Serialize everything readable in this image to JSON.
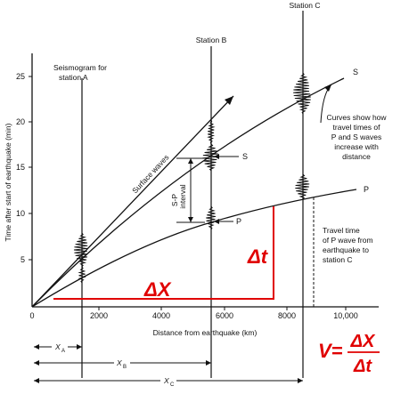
{
  "stations": {
    "a": "Seismogram for",
    "a2": "station A",
    "b": "Station B",
    "c": "Station C"
  },
  "y_axis": {
    "label": "Time after start of earthquake (min)",
    "ticks": [
      "5",
      "10",
      "15",
      "20",
      "25"
    ]
  },
  "x_axis": {
    "label": "Distance from earthquake (km)",
    "origin": "0",
    "ticks": [
      "2000",
      "4000",
      "6000",
      "8000",
      "10,000"
    ]
  },
  "curves": {
    "surface": "Surface waves",
    "s": "S",
    "p": "P",
    "s_marker": "S",
    "p_marker": "P",
    "sp_interval": [
      "S-P",
      "interval"
    ]
  },
  "annotations": {
    "curves_note": [
      "Curves show how",
      "travel times of",
      "P and S waves",
      "increase with",
      "distance"
    ],
    "travel_note": [
      "Travel time",
      "of P wave from",
      "earthquake to",
      "station C"
    ]
  },
  "distance_markers": {
    "a": "X",
    "a_sub": "A",
    "b": "X",
    "b_sub": "B",
    "c": "X",
    "c_sub": "C"
  },
  "handwritten": {
    "dt": "Δt",
    "dx": "ΔX",
    "formula_lhs": "V=",
    "formula_num": "ΔX",
    "formula_den": "Δt"
  },
  "colors": {
    "ink": "#111111",
    "red": "#e00000"
  }
}
